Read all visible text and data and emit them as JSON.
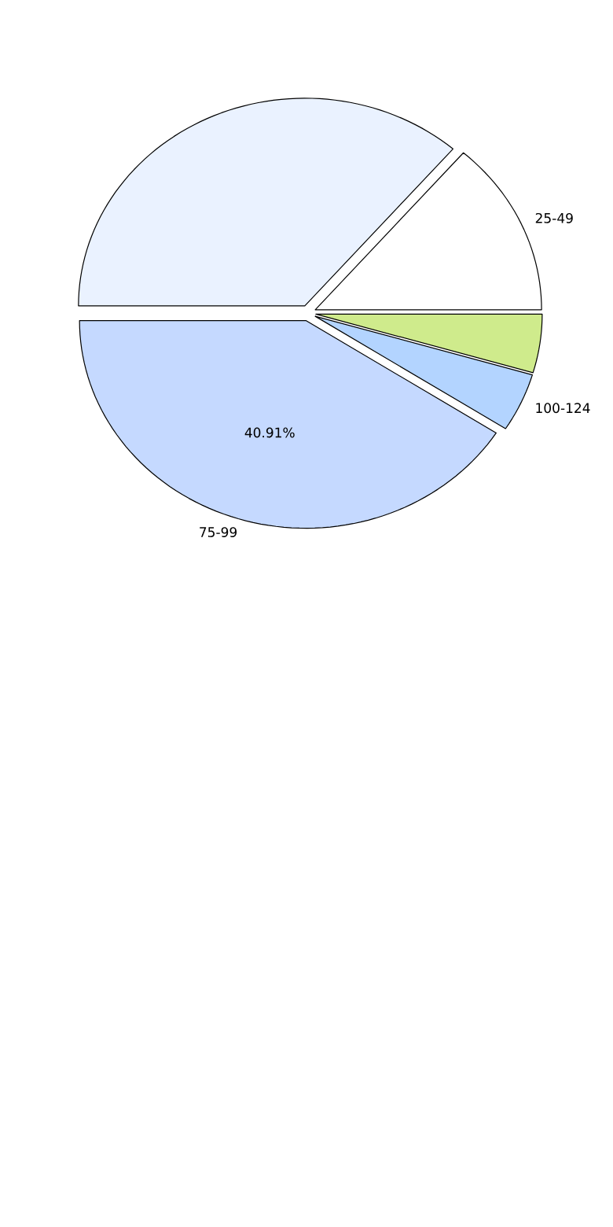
{
  "chart_data": {
    "type": "pie",
    "categories": [
      "25-49",
      null,
      "75-99",
      "100-124",
      null
    ],
    "values": [
      13.64,
      36.36,
      40.91,
      4.55,
      4.55
    ],
    "colors": [
      "#ffffff",
      "#eaf2ff",
      "#c5d9ff",
      "#b3d4ff",
      "#cfeb8c"
    ],
    "value_labels": [
      null,
      null,
      "40.91%",
      null,
      null
    ]
  }
}
